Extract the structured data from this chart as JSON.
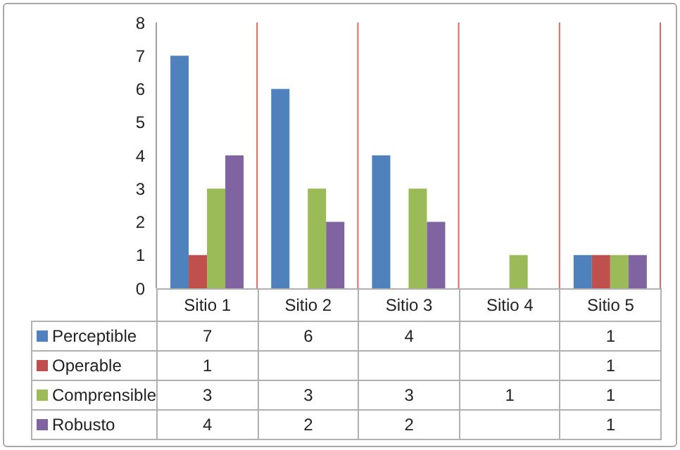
{
  "chart_data": {
    "type": "bar",
    "categories": [
      "Sitio 1",
      "Sitio 2",
      "Sitio 3",
      "Sitio 4",
      "Sitio 5"
    ],
    "series": [
      {
        "name": "Perceptible",
        "color": "#4f81bd",
        "values": [
          7,
          6,
          4,
          null,
          1
        ]
      },
      {
        "name": "Operable",
        "color": "#c0504d",
        "values": [
          1,
          null,
          null,
          null,
          1
        ]
      },
      {
        "name": "Comprensible",
        "color": "#9bbb59",
        "values": [
          3,
          3,
          3,
          1,
          1
        ]
      },
      {
        "name": "Robusto",
        "color": "#8064a2",
        "values": [
          4,
          2,
          2,
          null,
          1
        ]
      }
    ],
    "ylim": [
      0,
      8
    ],
    "yticks": [
      0,
      1,
      2,
      3,
      4,
      5,
      6,
      7,
      8
    ],
    "grid": "x",
    "legend": "bottom",
    "data_labels": true
  }
}
